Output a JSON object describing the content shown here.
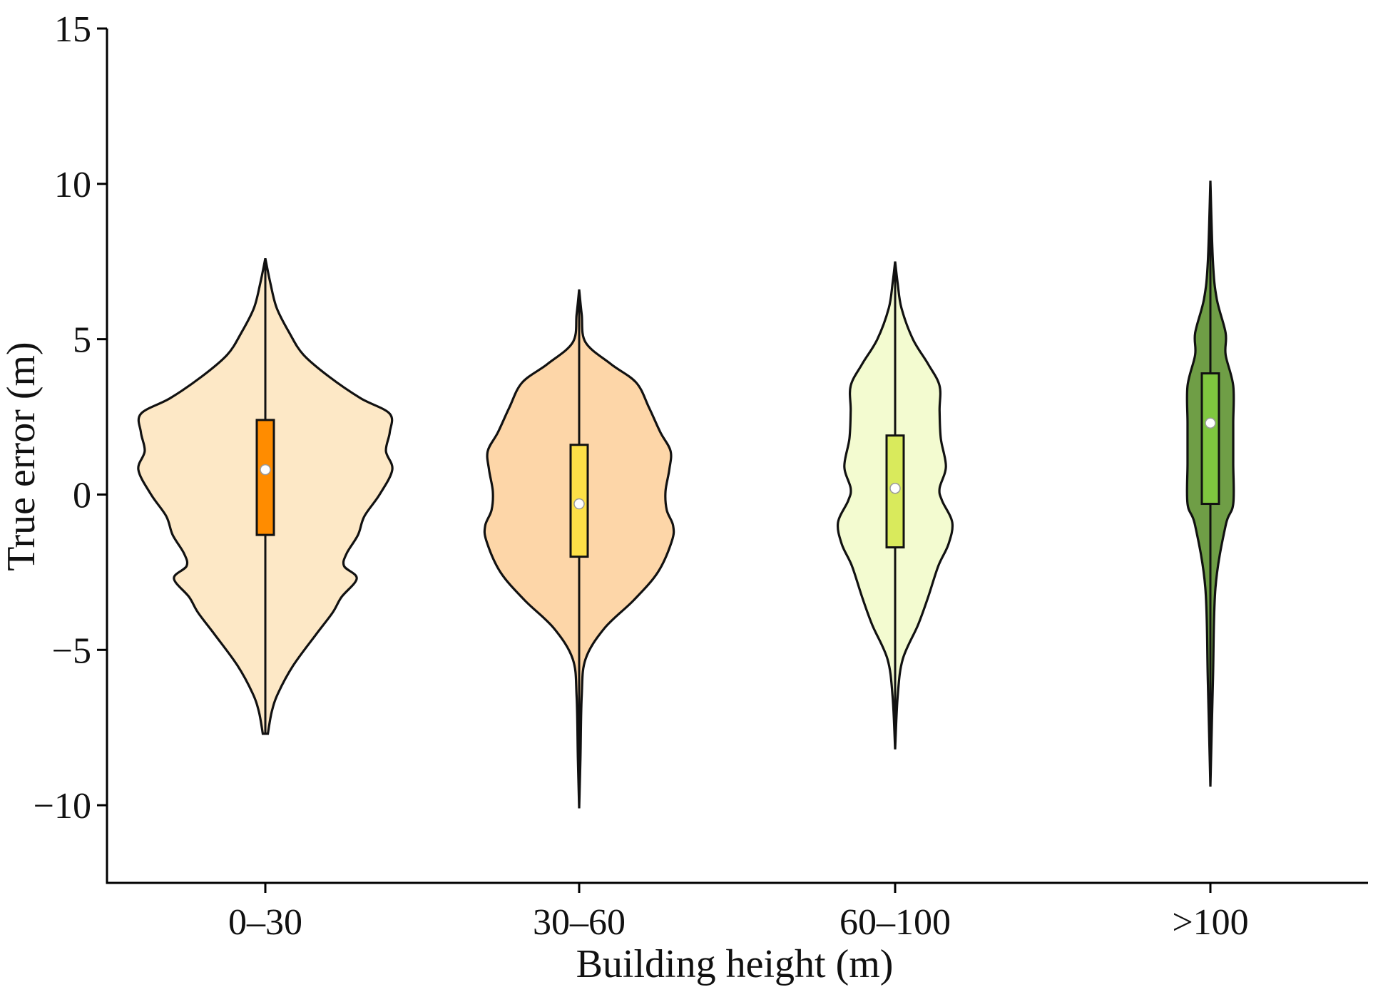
{
  "chart_data": {
    "type": "violin",
    "xlabel": "Building height (m)",
    "ylabel": "True error (m)",
    "ylim": [
      -12.5,
      15
    ],
    "yticks": [
      15,
      10,
      5,
      0,
      -5,
      -10
    ],
    "ytick_labels": [
      "15",
      "10",
      "5",
      "0",
      "−5",
      "−10"
    ],
    "categories": [
      "0–30",
      "30–60",
      "60–100",
      ">100"
    ],
    "series": [
      {
        "name": "0–30",
        "fill_color": "#fde8c6",
        "box_color": "#ff8c00",
        "min": -7.7,
        "max": 7.6,
        "q1": -1.3,
        "q3": 2.4,
        "median": 0.8,
        "density": [
          [
            -7.7,
            0.02
          ],
          [
            -7.0,
            0.05
          ],
          [
            -6.4,
            0.1
          ],
          [
            -5.5,
            0.22
          ],
          [
            -4.5,
            0.4
          ],
          [
            -3.8,
            0.53
          ],
          [
            -3.3,
            0.6
          ],
          [
            -2.7,
            0.72
          ],
          [
            -2.3,
            0.62
          ],
          [
            -1.9,
            0.64
          ],
          [
            -1.3,
            0.73
          ],
          [
            -0.7,
            0.78
          ],
          [
            0.0,
            0.9
          ],
          [
            0.8,
            1.0
          ],
          [
            1.4,
            0.95
          ],
          [
            2.0,
            0.98
          ],
          [
            2.6,
            0.98
          ],
          [
            3.1,
            0.75
          ],
          [
            3.8,
            0.5
          ],
          [
            4.5,
            0.3
          ],
          [
            5.2,
            0.19
          ],
          [
            6.0,
            0.09
          ],
          [
            6.8,
            0.04
          ],
          [
            7.6,
            0.0
          ]
        ]
      },
      {
        "name": "30–60",
        "fill_color": "#fdd6a8",
        "box_color": "#fde047",
        "min": -10.1,
        "max": 6.6,
        "q1": -2.0,
        "q3": 1.6,
        "median": -0.3,
        "density": [
          [
            -10.1,
            0.0
          ],
          [
            -8.5,
            0.01
          ],
          [
            -6.5,
            0.02
          ],
          [
            -5.3,
            0.05
          ],
          [
            -4.3,
            0.2
          ],
          [
            -3.4,
            0.43
          ],
          [
            -2.5,
            0.62
          ],
          [
            -1.5,
            0.73
          ],
          [
            -1.0,
            0.74
          ],
          [
            -0.5,
            0.69
          ],
          [
            0.1,
            0.68
          ],
          [
            0.8,
            0.71
          ],
          [
            1.4,
            0.72
          ],
          [
            2.0,
            0.64
          ],
          [
            2.8,
            0.55
          ],
          [
            3.6,
            0.45
          ],
          [
            4.2,
            0.25
          ],
          [
            4.9,
            0.05
          ],
          [
            5.8,
            0.02
          ],
          [
            6.6,
            0.0
          ]
        ]
      },
      {
        "name": "60–100",
        "fill_color": "#f3fbd0",
        "box_color": "#d9ea5c",
        "min": -8.2,
        "max": 7.5,
        "q1": -1.7,
        "q3": 1.9,
        "median": 0.2,
        "density": [
          [
            -8.2,
            0.0
          ],
          [
            -6.5,
            0.02
          ],
          [
            -5.3,
            0.06
          ],
          [
            -4.2,
            0.18
          ],
          [
            -3.3,
            0.26
          ],
          [
            -2.3,
            0.34
          ],
          [
            -1.6,
            0.42
          ],
          [
            -0.9,
            0.45
          ],
          [
            -0.2,
            0.37
          ],
          [
            0.2,
            0.35
          ],
          [
            0.9,
            0.4
          ],
          [
            1.8,
            0.36
          ],
          [
            2.7,
            0.35
          ],
          [
            3.5,
            0.35
          ],
          [
            4.2,
            0.26
          ],
          [
            5.0,
            0.14
          ],
          [
            6.0,
            0.05
          ],
          [
            6.8,
            0.02
          ],
          [
            7.5,
            0.0
          ]
        ]
      },
      {
        "name": ">100",
        "fill_color": "#6f9e46",
        "box_color": "#7fc63f",
        "min": -9.4,
        "max": 10.1,
        "q1": -0.3,
        "q3": 3.9,
        "median": 2.3,
        "density": [
          [
            -9.4,
            0.0
          ],
          [
            -6.0,
            0.02
          ],
          [
            -3.0,
            0.04
          ],
          [
            -1.0,
            0.12
          ],
          [
            -0.3,
            0.18
          ],
          [
            1.0,
            0.18
          ],
          [
            2.3,
            0.18
          ],
          [
            3.5,
            0.18
          ],
          [
            4.5,
            0.12
          ],
          [
            5.2,
            0.12
          ],
          [
            6.3,
            0.05
          ],
          [
            7.5,
            0.02
          ],
          [
            10.1,
            0.0
          ]
        ]
      }
    ]
  }
}
